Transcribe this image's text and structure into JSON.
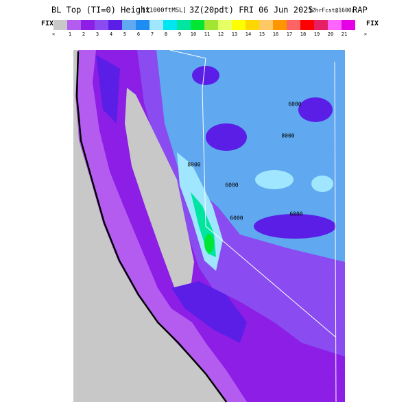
{
  "header": {
    "title": "BL Top (TI=0) Height",
    "units": "[x1000ftMSL]",
    "valid": "3Z(20pdt) FRI 06 Jun 2025",
    "forecast": "12hrFcst@1600z",
    "model": "RAP"
  },
  "colorbar": {
    "left_label": "FIX",
    "right_label": "FIX",
    "labels": [
      "<",
      "1",
      "2",
      "3",
      "4",
      "5",
      "6",
      "7",
      "8",
      "9",
      "10",
      "11",
      "12",
      "13",
      "14",
      "15",
      "16",
      "17",
      "18",
      "19",
      "20",
      "21",
      ">"
    ],
    "colors": [
      "#c8c8c8",
      "#b45cf0",
      "#8c1ee6",
      "#8a4cf0",
      "#5a1ee6",
      "#60a8f0",
      "#1e8cf0",
      "#a0e6ff",
      "#00e6f0",
      "#00e6a0",
      "#00e632",
      "#a0e632",
      "#e6ff64",
      "#ffff00",
      "#ffd700",
      "#ffc864",
      "#ff9600",
      "#ff6464",
      "#ff0000",
      "#e61e64",
      "#ff64ff",
      "#e600e6"
    ]
  },
  "map": {
    "contour_labels": [
      "6000",
      "6000",
      "8000",
      "6000",
      "6000",
      "8000"
    ]
  }
}
